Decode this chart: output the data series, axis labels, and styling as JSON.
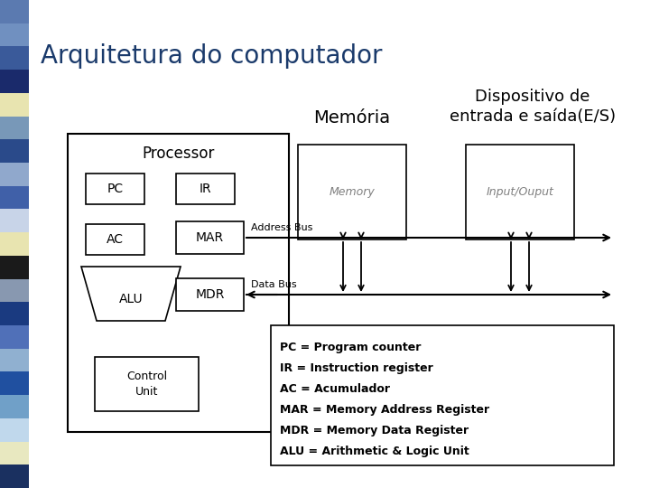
{
  "title": "Arquitetura do computador",
  "title_color": "#1a3a6b",
  "title_fontsize": 20,
  "bg_color": "#ffffff",
  "memoria_label": "Memória",
  "dispositivo_line1": "Dispositivo de",
  "dispositivo_line2": "entrada e saída(E/S)",
  "processor_label": "Processor",
  "memory_box_label": "Memory",
  "input_output_label": "Input/Ouput",
  "address_bus_label": "Address Bus",
  "data_bus_label": "Data Bus",
  "pc_label": "PC",
  "ir_label": "IR",
  "ac_label": "AC",
  "mar_label": "MAR",
  "mdr_label": "MDR",
  "alu_label": "ALU",
  "control_label": "Control\nUnit",
  "legend_lines": [
    "PC = Program counter",
    "IR = Instruction register",
    "AC = Acumulador",
    "MAR = Memory Address Register",
    "MDR = Memory Data Register",
    "ALU = Arithmetic & Logic Unit"
  ],
  "bar_colors": [
    "#5b7ab0",
    "#7090c0",
    "#3a5a9a",
    "#1a2a6b",
    "#e8e4b0",
    "#7898b8",
    "#2a4a8a",
    "#90a8cc",
    "#4060a8",
    "#c8d4e8",
    "#e8e4b0",
    "#1a1a1a",
    "#8898b0",
    "#1a3a80",
    "#5070b8",
    "#90b0d0",
    "#2050a0",
    "#70a0c8",
    "#c0d8ec",
    "#e8e8c0",
    "#1a3060"
  ]
}
